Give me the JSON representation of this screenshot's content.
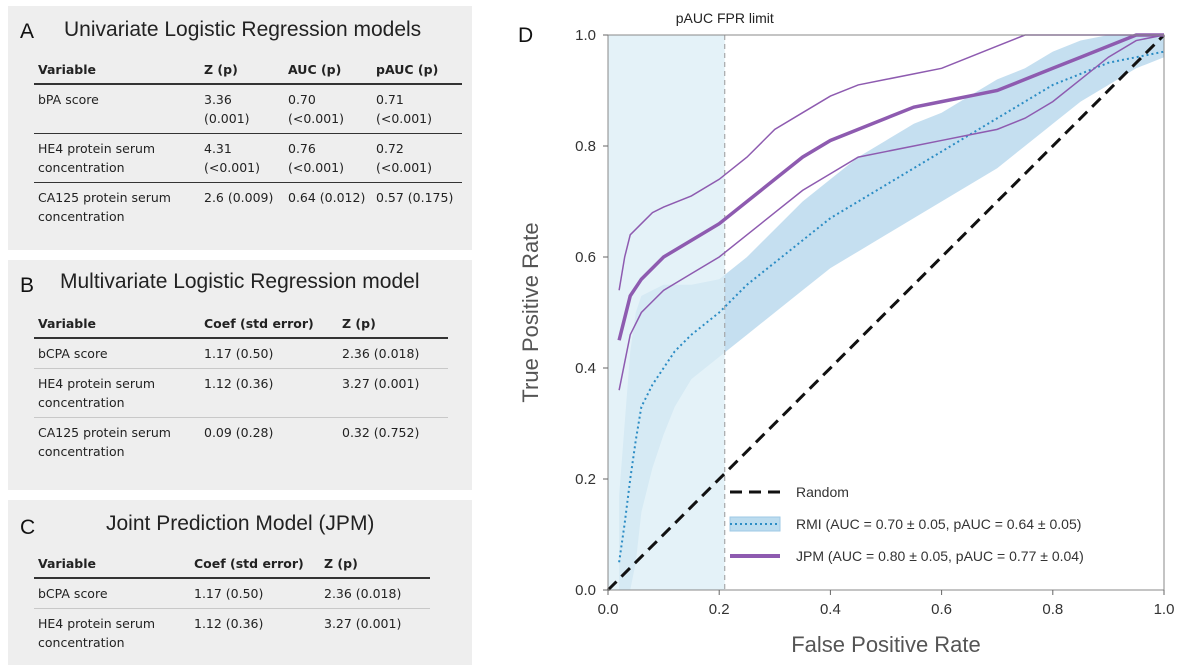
{
  "panels": {
    "a": {
      "letter": "A",
      "title": "Univariate Logistic Regression models",
      "headers": [
        "Variable",
        "Z (p)",
        "AUC (p)",
        "pAUC (p)"
      ],
      "rows": [
        {
          "variable": "bPA score",
          "z": "3.36 (0.001)",
          "auc": "0.70 (<0.001)",
          "pauc": "0.71 (<0.001)"
        },
        {
          "variable": "HE4 protein serum concentration",
          "z": "4.31 (<0.001)",
          "auc": "0.76 (<0.001)",
          "pauc": "0.72 (<0.001)"
        },
        {
          "variable": "CA125 protein serum concentration",
          "z": "2.6 (0.009)",
          "auc": "0.64 (0.012)",
          "pauc": "0.57 (0.175)"
        }
      ]
    },
    "b": {
      "letter": "B",
      "title": "Multivariate Logistic Regression model",
      "headers": [
        "Variable",
        "Coef (std error)",
        "Z (p)"
      ],
      "rows": [
        {
          "variable": "bCPA score",
          "coef": "1.17 (0.50)",
          "z": "2.36 (0.018)"
        },
        {
          "variable": "HE4 protein serum concentration",
          "coef": "1.12 (0.36)",
          "z": "3.27 (0.001)"
        },
        {
          "variable": "CA125 protein serum concentration",
          "coef": "0.09 (0.28)",
          "z": "0.32 (0.752)"
        }
      ]
    },
    "c": {
      "letter": "C",
      "title": "Joint Prediction Model (JPM)",
      "headers": [
        "Variable",
        "Coef (std error)",
        "Z (p)"
      ],
      "rows": [
        {
          "variable": "bCPA score",
          "coef": "1.17 (0.50)",
          "z": "2.36 (0.018)"
        },
        {
          "variable": "HE4 protein serum concentration",
          "coef": "1.12 (0.36)",
          "z": "3.27 (0.001)"
        }
      ]
    }
  },
  "chart_data": {
    "type": "line",
    "panel_letter": "D",
    "xlabel": "False Positive Rate",
    "ylabel": "True Positive Rate",
    "xlim": [
      0,
      1
    ],
    "ylim": [
      0,
      1
    ],
    "xticks": [
      "0.0",
      "0.2",
      "0.4",
      "0.6",
      "0.8",
      "1.0"
    ],
    "yticks": [
      "0.0",
      "0.2",
      "0.4",
      "0.6",
      "0.8",
      "1.0"
    ],
    "grid": false,
    "fpr_limit": {
      "x": 0.21,
      "label": "pAUC FPR limit"
    },
    "legend_position": "bottom-right",
    "legend": [
      "Random",
      "RMI (AUC = 0.70 ± 0.05, pAUC = 0.64 ± 0.05)",
      "JPM (AUC = 0.80 ± 0.05, pAUC = 0.77 ± 0.04)"
    ],
    "series": [
      {
        "name": "Random",
        "style": "dashed",
        "color": "#111111",
        "x": [
          0,
          1
        ],
        "y": [
          0,
          1
        ]
      },
      {
        "name": "RMI (AUC = 0.70 ± 0.05, pAUC = 0.64 ± 0.05)",
        "style": "dotted",
        "color": "#2b8cc4",
        "x": [
          0.02,
          0.03,
          0.04,
          0.05,
          0.06,
          0.08,
          0.1,
          0.12,
          0.15,
          0.2,
          0.25,
          0.3,
          0.35,
          0.4,
          0.45,
          0.5,
          0.55,
          0.6,
          0.65,
          0.7,
          0.75,
          0.8,
          0.85,
          0.9,
          0.95,
          1.0
        ],
        "y": [
          0.05,
          0.12,
          0.2,
          0.27,
          0.33,
          0.37,
          0.4,
          0.43,
          0.46,
          0.5,
          0.55,
          0.59,
          0.63,
          0.67,
          0.7,
          0.73,
          0.76,
          0.79,
          0.82,
          0.85,
          0.88,
          0.91,
          0.93,
          0.95,
          0.96,
          0.97
        ],
        "band_upper": [
          0.17,
          0.3,
          0.43,
          0.5,
          0.53,
          0.54,
          0.55,
          0.55,
          0.55,
          0.56,
          0.6,
          0.65,
          0.7,
          0.74,
          0.78,
          0.81,
          0.84,
          0.86,
          0.89,
          0.92,
          0.94,
          0.97,
          0.99,
          1.0,
          1.0,
          1.0
        ],
        "band_lower": [
          0.0,
          0.0,
          0.0,
          0.05,
          0.14,
          0.22,
          0.28,
          0.33,
          0.38,
          0.42,
          0.46,
          0.5,
          0.54,
          0.58,
          0.61,
          0.64,
          0.67,
          0.7,
          0.73,
          0.76,
          0.8,
          0.84,
          0.88,
          0.91,
          0.94,
          0.96
        ]
      },
      {
        "name": "JPM (AUC = 0.80 ± 0.05, pAUC = 0.77 ± 0.04)",
        "style": "solid",
        "color": "#8e5bb0",
        "x": [
          0.02,
          0.03,
          0.04,
          0.06,
          0.08,
          0.1,
          0.15,
          0.2,
          0.25,
          0.3,
          0.35,
          0.4,
          0.45,
          0.5,
          0.55,
          0.6,
          0.65,
          0.7,
          0.75,
          0.8,
          0.85,
          0.9,
          0.95,
          1.0
        ],
        "y": [
          0.45,
          0.49,
          0.53,
          0.56,
          0.58,
          0.6,
          0.63,
          0.66,
          0.7,
          0.74,
          0.78,
          0.81,
          0.83,
          0.85,
          0.87,
          0.88,
          0.89,
          0.9,
          0.92,
          0.94,
          0.96,
          0.98,
          1.0,
          1.0
        ],
        "band_upper": [
          0.54,
          0.6,
          0.64,
          0.66,
          0.68,
          0.69,
          0.71,
          0.74,
          0.78,
          0.83,
          0.86,
          0.89,
          0.91,
          0.92,
          0.93,
          0.94,
          0.96,
          0.98,
          1.0,
          1.0,
          1.0,
          1.0,
          1.0,
          1.0
        ],
        "band_lower": [
          0.36,
          0.41,
          0.46,
          0.5,
          0.52,
          0.54,
          0.57,
          0.6,
          0.64,
          0.68,
          0.72,
          0.75,
          0.78,
          0.79,
          0.8,
          0.81,
          0.82,
          0.83,
          0.85,
          0.88,
          0.92,
          0.96,
          0.99,
          1.0
        ]
      }
    ]
  }
}
